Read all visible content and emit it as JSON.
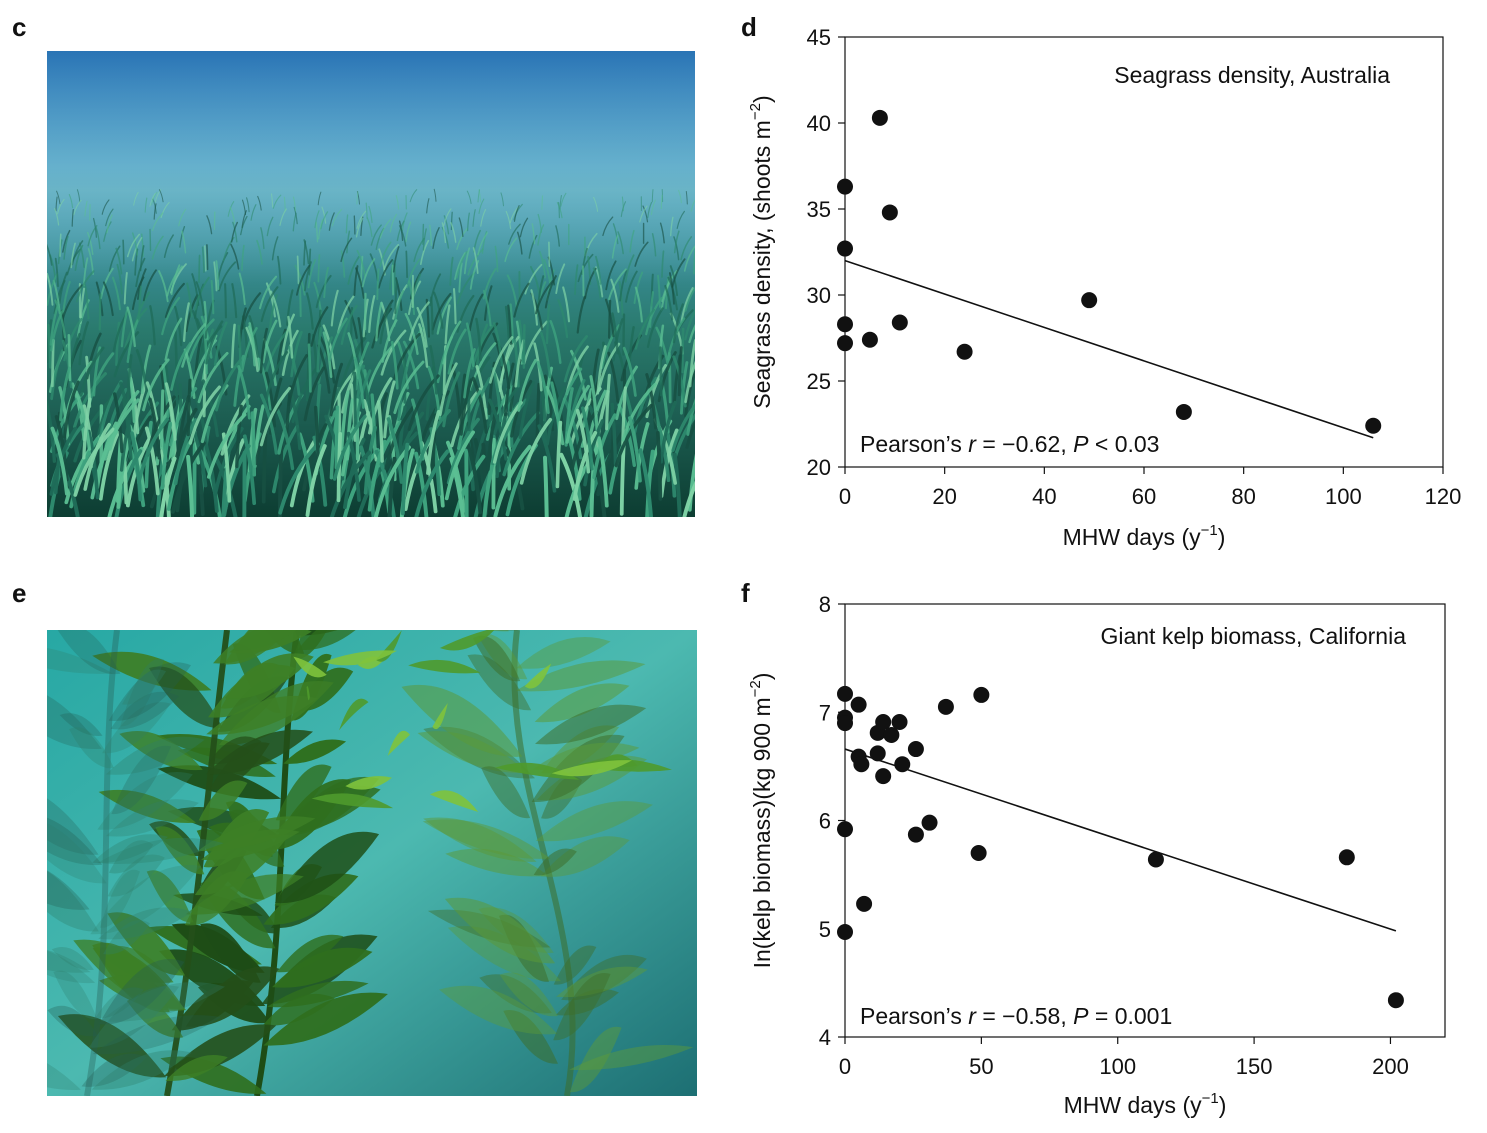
{
  "panels": {
    "c": {
      "letter": "c",
      "photo": "seagrass-meadow-photo"
    },
    "d": {
      "letter": "d"
    },
    "e": {
      "letter": "e",
      "photo": "giant-kelp-forest-photo"
    },
    "f": {
      "letter": "f"
    }
  },
  "colors": {
    "points": "#111111",
    "line": "#111111",
    "axis": "#111111"
  },
  "chart_data": [
    {
      "id": "d",
      "type": "scatter",
      "title": "Seagrass density, Australia",
      "xlabel": "MHW days (y",
      "xlabel_sup": "−1",
      "xlabel_end": ")",
      "ylabel": "Seagrass density, (shoots m",
      "ylabel_sup": "−2",
      "ylabel_end": ")",
      "xlim": [
        0,
        120
      ],
      "ylim": [
        20,
        45
      ],
      "xticks": [
        0,
        20,
        40,
        60,
        80,
        100,
        120
      ],
      "yticks": [
        20,
        25,
        30,
        35,
        40,
        45
      ],
      "annotation": {
        "prefix": "Pearson’s ",
        "r_symbol": "r",
        "r_value": " = −0.62, ",
        "p_symbol": "P",
        "p_value": " < 0.03"
      },
      "points": [
        {
          "x": 0,
          "y": 36.3
        },
        {
          "x": 0,
          "y": 32.7
        },
        {
          "x": 0,
          "y": 28.3
        },
        {
          "x": 0,
          "y": 27.2
        },
        {
          "x": 5,
          "y": 27.4
        },
        {
          "x": 7,
          "y": 40.3
        },
        {
          "x": 9,
          "y": 34.8
        },
        {
          "x": 11,
          "y": 28.4
        },
        {
          "x": 24,
          "y": 26.7
        },
        {
          "x": 49,
          "y": 29.7
        },
        {
          "x": 68,
          "y": 23.2
        },
        {
          "x": 106,
          "y": 22.4
        }
      ],
      "fit": {
        "x": [
          0,
          106
        ],
        "y": [
          32.0,
          21.7
        ]
      }
    },
    {
      "id": "f",
      "type": "scatter",
      "title": "Giant kelp biomass, California",
      "xlabel": "MHW days (y",
      "xlabel_sup": "−1",
      "xlabel_end": ")",
      "ylabel": "In(kelp biomass)(kg 900 m",
      "ylabel_sup": "−2",
      "ylabel_end": ")",
      "xlim": [
        0,
        220
      ],
      "ylim": [
        4,
        8
      ],
      "xticks": [
        0,
        50,
        100,
        150,
        200
      ],
      "yticks": [
        4,
        5,
        6,
        7,
        8
      ],
      "annotation": {
        "prefix": "Pearson’s ",
        "r_symbol": "r",
        "r_value": " = −0.58, ",
        "p_symbol": "P",
        "p_value": " = 0.001"
      },
      "points": [
        {
          "x": 0,
          "y": 7.17
        },
        {
          "x": 0,
          "y": 6.95
        },
        {
          "x": 0,
          "y": 6.9
        },
        {
          "x": 0,
          "y": 5.92
        },
        {
          "x": 0,
          "y": 4.97
        },
        {
          "x": 5,
          "y": 7.07
        },
        {
          "x": 5,
          "y": 6.59
        },
        {
          "x": 6,
          "y": 6.52
        },
        {
          "x": 7,
          "y": 5.23
        },
        {
          "x": 12,
          "y": 6.62
        },
        {
          "x": 12,
          "y": 6.81
        },
        {
          "x": 14,
          "y": 6.91
        },
        {
          "x": 14,
          "y": 6.41
        },
        {
          "x": 17,
          "y": 6.79
        },
        {
          "x": 20,
          "y": 6.91
        },
        {
          "x": 21,
          "y": 6.52
        },
        {
          "x": 26,
          "y": 6.66
        },
        {
          "x": 26,
          "y": 5.87
        },
        {
          "x": 31,
          "y": 5.98
        },
        {
          "x": 37,
          "y": 7.05
        },
        {
          "x": 49,
          "y": 5.7
        },
        {
          "x": 50,
          "y": 7.16
        },
        {
          "x": 114,
          "y": 5.64
        },
        {
          "x": 184,
          "y": 5.66
        },
        {
          "x": 202,
          "y": 4.34
        }
      ],
      "fit": {
        "x": [
          0,
          202
        ],
        "y": [
          6.66,
          4.98
        ]
      }
    }
  ]
}
